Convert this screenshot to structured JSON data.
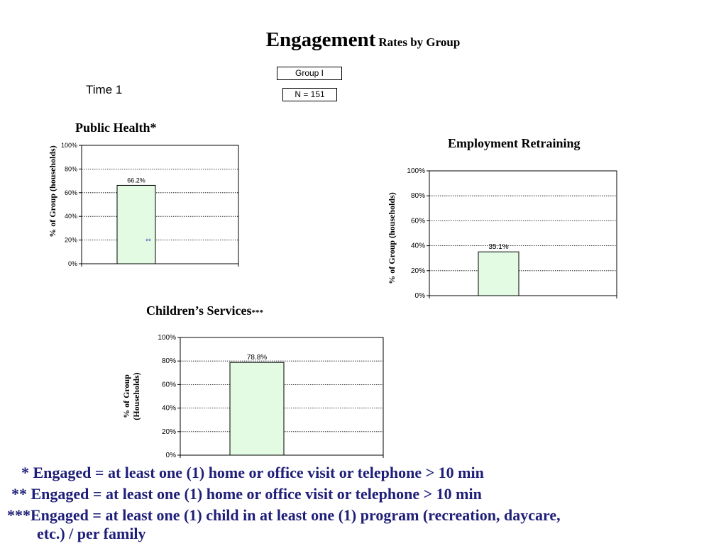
{
  "header": {
    "title_big": "Engagement",
    "title_small": "Rates by Group",
    "group_label": "Group I",
    "n_label": "N = 151",
    "time_label": "Time 1"
  },
  "footnotes": {
    "line1": "* Engaged = at least one (1) home or office visit or telephone > 10 min",
    "line2": "** Engaged = at least one (1) home or office visit or telephone > 10 min",
    "line3": "***Engaged = at least one (1) child in at least one (1) program (recreation, daycare,",
    "line4": "etc.) / per family"
  },
  "chart_data": [
    {
      "type": "bar",
      "title": "Public Health*",
      "ylabel": "% of Group (households)",
      "categories": [
        "Group I"
      ],
      "values": [
        66.2
      ],
      "data_labels": [
        "66.2%"
      ],
      "annotation": "**",
      "ylim": [
        0,
        100
      ],
      "yticks": [
        "0%",
        "20%",
        "40%",
        "60%",
        "80%",
        "100%"
      ],
      "grid": true,
      "color": "#e2fbe2"
    },
    {
      "type": "bar",
      "title": "Employment Retraining",
      "ylabel": "% of Group (households)",
      "categories": [
        "Group I"
      ],
      "values": [
        35.1
      ],
      "data_labels": [
        "35.1%"
      ],
      "ylim": [
        0,
        100
      ],
      "yticks": [
        "0%",
        "20%",
        "40%",
        "60%",
        "80%",
        "100%"
      ],
      "grid": true,
      "color": "#e2fbe2"
    },
    {
      "type": "bar",
      "title": "Children’s Services",
      "title_suffix": "***",
      "ylabel": "% of Group (Households)",
      "ylabel_lines": [
        "% of Group",
        "(Households)"
      ],
      "categories": [
        "Group I"
      ],
      "values": [
        78.8
      ],
      "data_labels": [
        "78.8%"
      ],
      "ylim": [
        0,
        100
      ],
      "yticks": [
        "0%",
        "20%",
        "40%",
        "60%",
        "80%",
        "100%"
      ],
      "grid": true,
      "color": "#e2fbe2"
    }
  ]
}
